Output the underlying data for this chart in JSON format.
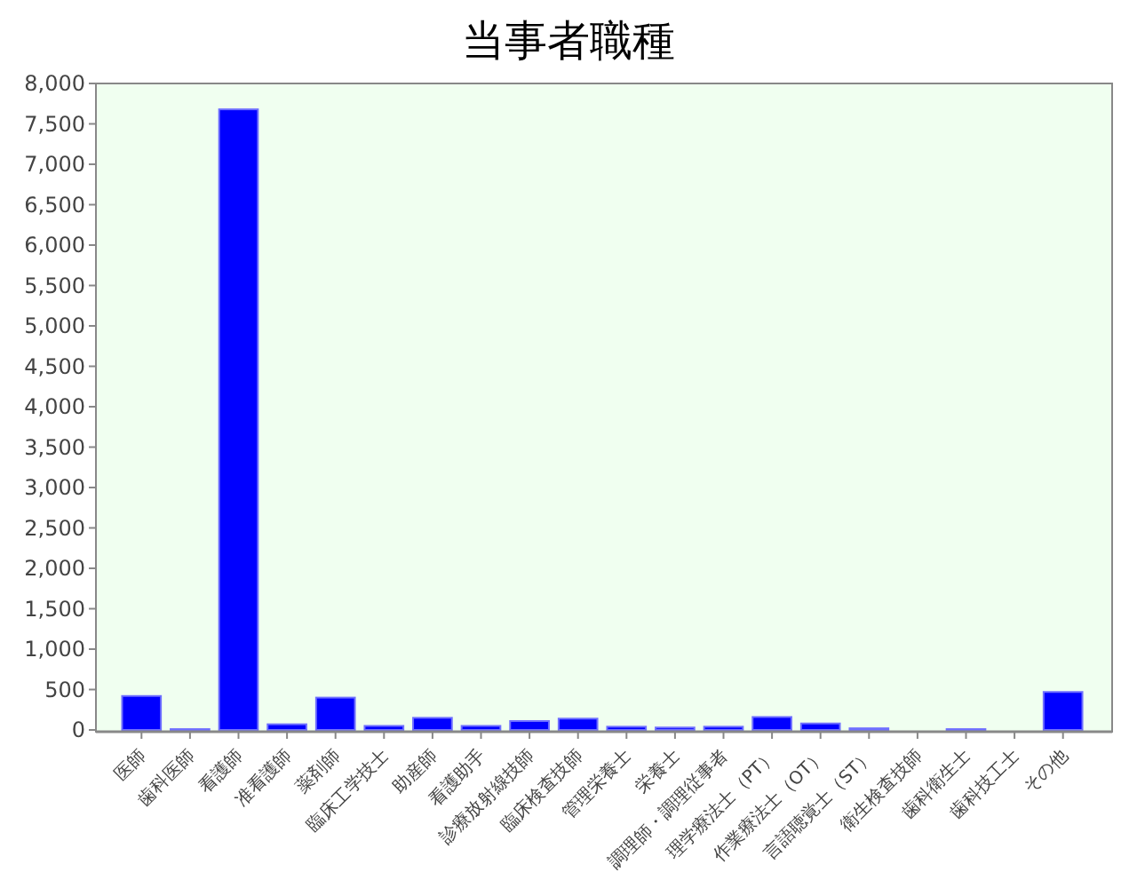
{
  "chart_data": {
    "type": "bar",
    "title": "当事者職種",
    "categories": [
      "医師",
      "歯科医師",
      "看護師",
      "准看護師",
      "薬剤師",
      "臨床工学技士",
      "助産師",
      "看護助手",
      "診療放射線技師",
      "臨床検査技師",
      "管理栄養士",
      "栄養士",
      "調理師・調理従事者",
      "理学療法士（PT）",
      "作業療法士（OT）",
      "言語聴覚士（ST）",
      "衛生検査技師",
      "歯科衛生士",
      "歯科技工士",
      "その他"
    ],
    "values": [
      420,
      10,
      7680,
      70,
      400,
      50,
      150,
      50,
      110,
      140,
      40,
      30,
      40,
      160,
      80,
      20,
      0,
      10,
      0,
      470
    ],
    "color": "#0000ff",
    "ylim": [
      0,
      8000
    ],
    "yticks": [
      {
        "value": 0,
        "label": "0"
      },
      {
        "value": 500,
        "label": "500"
      },
      {
        "value": 1000,
        "label": "1,000"
      },
      {
        "value": 1500,
        "label": "1,500"
      },
      {
        "value": 2000,
        "label": "2,000"
      },
      {
        "value": 2500,
        "label": "2,500"
      },
      {
        "value": 3000,
        "label": "3,000"
      },
      {
        "value": 3500,
        "label": "3,500"
      },
      {
        "value": 4000,
        "label": "4,000"
      },
      {
        "value": 4500,
        "label": "4,500"
      },
      {
        "value": 5000,
        "label": "5,000"
      },
      {
        "value": 5500,
        "label": "5,500"
      },
      {
        "value": 6000,
        "label": "6,000"
      },
      {
        "value": 6500,
        "label": "6,500"
      },
      {
        "value": 7000,
        "label": "7,000"
      },
      {
        "value": 7500,
        "label": "7,500"
      },
      {
        "value": 8000,
        "label": "8,000"
      }
    ],
    "grid": false
  }
}
